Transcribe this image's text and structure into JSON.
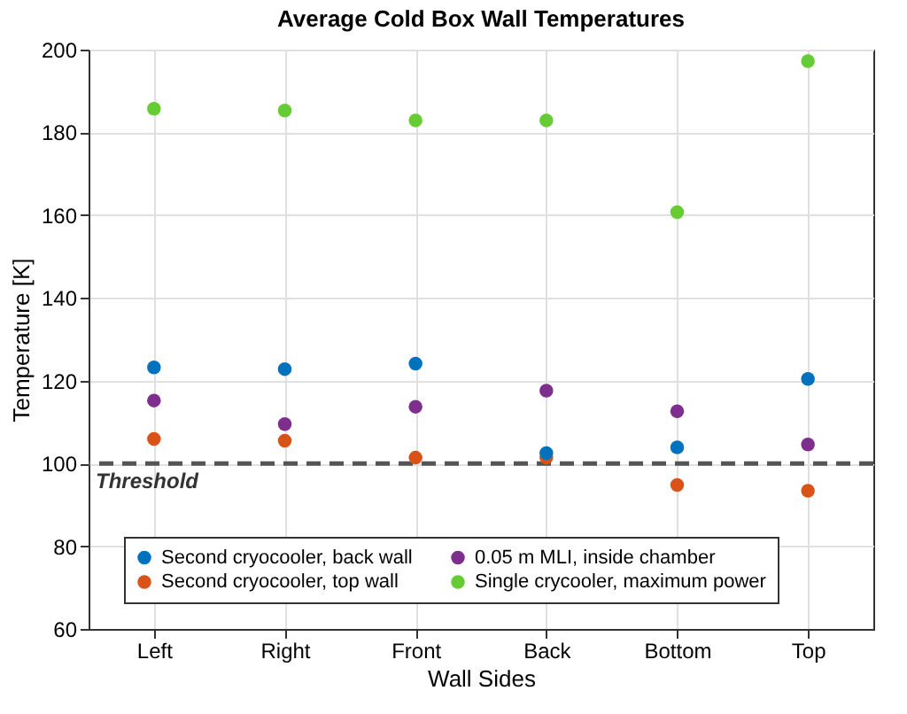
{
  "chart_data": {
    "type": "scatter",
    "title": "Average Cold Box Wall Temperatures",
    "xlabel": "Wall Sides",
    "ylabel": "Temperature [K]",
    "categories": [
      "Left",
      "Right",
      "Front",
      "Back",
      "Bottom",
      "Top"
    ],
    "series": [
      {
        "name": "Second cryocooler, back wall",
        "color": "#0072bd",
        "values": [
          123.2,
          122.8,
          124.1,
          102.5,
          103.9,
          120.4
        ]
      },
      {
        "name": "Second cryocooler, top wall",
        "color": "#d95319",
        "values": [
          105.9,
          105.5,
          101.4,
          101.4,
          94.8,
          93.4
        ]
      },
      {
        "name": "0.05 m MLI, inside chamber",
        "color": "#7e2f8e",
        "values": [
          115.2,
          109.5,
          113.7,
          117.6,
          112.6,
          104.6
        ]
      },
      {
        "name": "Single crycooler, maximum power",
        "color": "#66cc33",
        "values": [
          185.7,
          185.3,
          182.9,
          182.9,
          160.7,
          197.2
        ]
      }
    ],
    "ylim": [
      60,
      200
    ],
    "yticks": [
      60,
      80,
      100,
      120,
      140,
      160,
      180,
      200
    ],
    "grid": true,
    "legend": "bottom",
    "marker": "circle",
    "ref_lines": [
      {
        "axis": "y",
        "value": 100,
        "label": "Threshold",
        "color": "#555555",
        "line_style": "dashed"
      }
    ]
  }
}
